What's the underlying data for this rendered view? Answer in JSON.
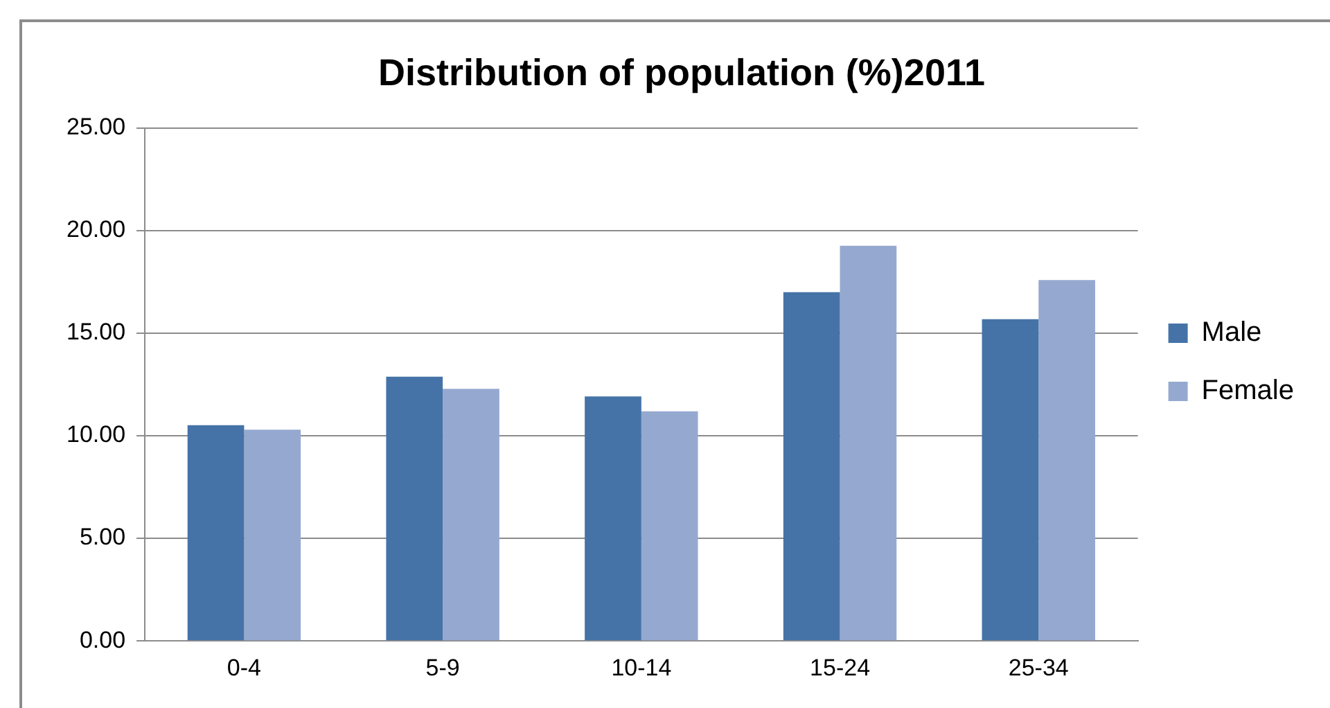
{
  "chart_data": {
    "type": "bar",
    "title": "Distribution of population (%)2011",
    "categories": [
      "0-4",
      "5-9",
      "10-14",
      "15-24",
      "25-34"
    ],
    "series": [
      {
        "name": "Male",
        "color": "#4573a7",
        "values": [
          10.52,
          12.88,
          11.92,
          17.0,
          15.68
        ]
      },
      {
        "name": "Female",
        "color": "#95a9d0",
        "values": [
          10.3,
          12.29,
          11.19,
          19.26,
          17.59
        ]
      }
    ],
    "ylim": [
      0,
      25
    ],
    "yticks": [
      {
        "value": 0,
        "label": "0.00"
      },
      {
        "value": 5,
        "label": "5.00"
      },
      {
        "value": 10,
        "label": "10.00"
      },
      {
        "value": 15,
        "label": "15.00"
      },
      {
        "value": 20,
        "label": "20.00"
      },
      {
        "value": 25,
        "label": "25.00"
      }
    ],
    "grid": "y",
    "legend": "right"
  }
}
